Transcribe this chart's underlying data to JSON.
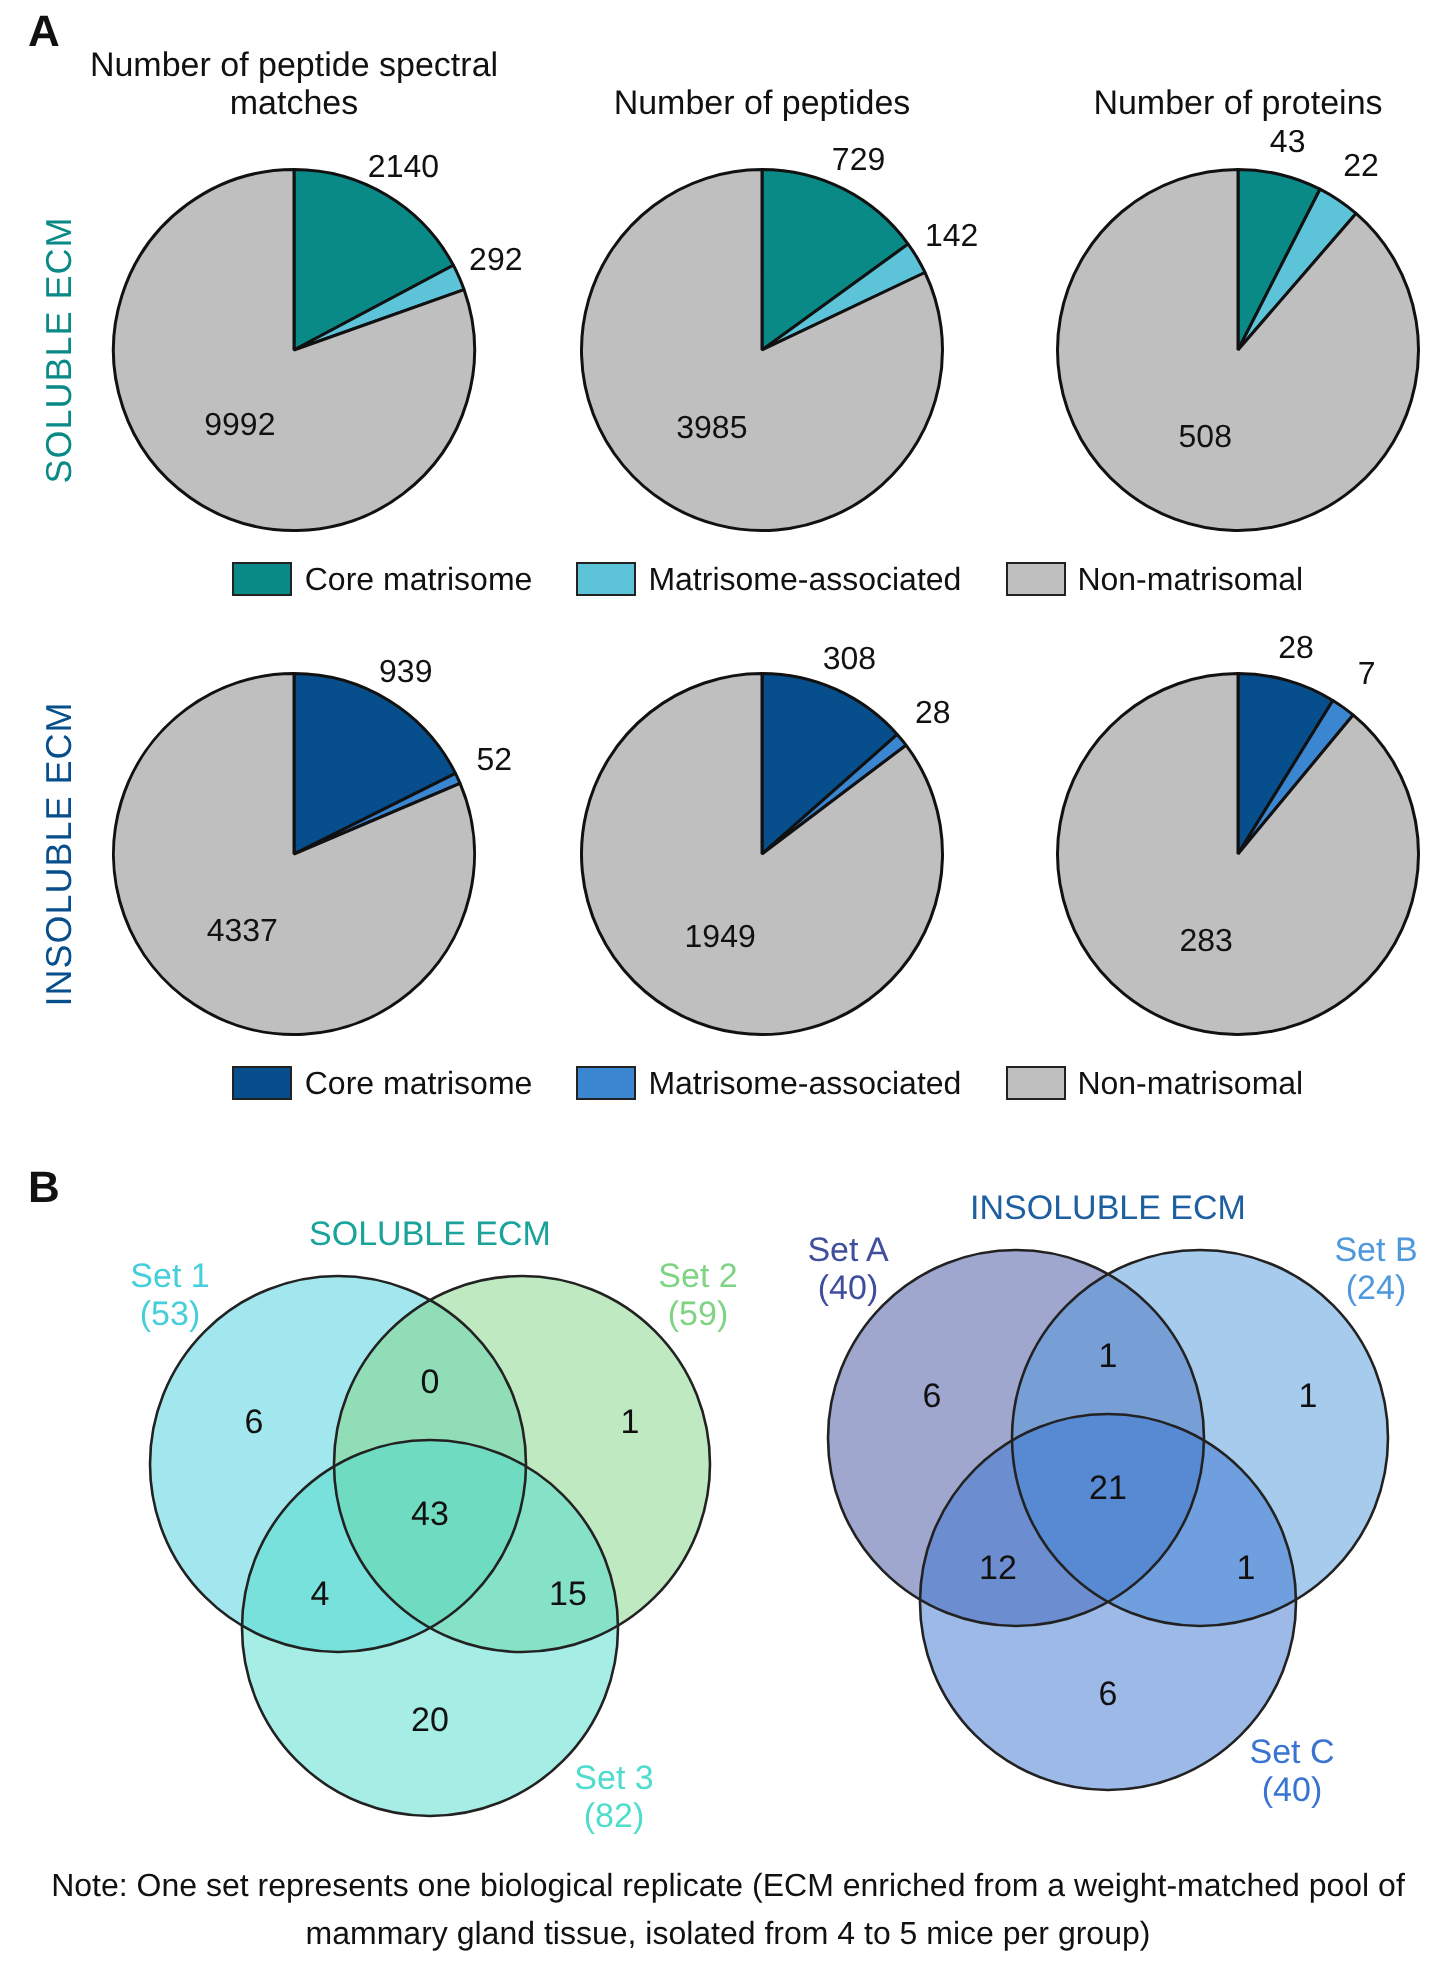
{
  "chart_data": [
    {
      "type": "pie",
      "title": "Number of peptide spectral matches",
      "ylabel": "SOLUBLE ECM",
      "annotations": [
        "A"
      ],
      "categories": [
        null,
        null,
        null
      ],
      "values": [
        2140,
        292,
        9992
      ],
      "colors": [
        "#0a8a86",
        "#5cc3d8",
        "#bfbfbf"
      ],
      "data_labels": true
    },
    {
      "type": "pie",
      "title": "Number of peptides",
      "categories": [
        "Core matrisome",
        "Matrisome-associated",
        "Non-matrisomal"
      ],
      "values": [
        729,
        142,
        3985
      ],
      "colors": [
        "#0a8a86",
        "#5cc3d8",
        "#bfbfbf"
      ],
      "data_labels": true,
      "legend": "bottom"
    },
    {
      "type": "pie",
      "title": "Number of proteins",
      "categories": [
        null,
        null,
        null
      ],
      "values": [
        43,
        22,
        508
      ],
      "colors": [
        "#0a8a86",
        "#5cc3d8",
        "#bfbfbf"
      ],
      "data_labels": true
    },
    {
      "type": "pie",
      "ylabel": "INSOLUBLE ECM",
      "categories": [
        null,
        null,
        null
      ],
      "values": [
        939,
        52,
        4337
      ],
      "colors": [
        "#074f8c",
        "#3b86d0",
        "#bfbfbf"
      ],
      "data_labels": true
    },
    {
      "type": "pie",
      "categories": [
        "Core matrisome",
        "Matrisome-associated",
        "Non-matrisomal"
      ],
      "values": [
        308,
        28,
        1949
      ],
      "colors": [
        "#074f8c",
        "#3b86d0",
        "#bfbfbf"
      ],
      "data_labels": true,
      "legend": "bottom"
    },
    {
      "type": "pie",
      "categories": [
        null,
        null,
        null
      ],
      "values": [
        28,
        7,
        283
      ],
      "colors": [
        "#074f8c",
        "#3b86d0",
        "#bfbfbf"
      ],
      "data_labels": true
    },
    {
      "type": "other",
      "title": "SOLUBLE ECM",
      "color": "#1aa39b",
      "categories": [
        "Set 1",
        "Set 2",
        "Set 3"
      ],
      "values": [
        53,
        59,
        82
      ],
      "value_labels": [
        "(53)",
        "(59)",
        "(82)"
      ],
      "colors": [
        "#45cfdb",
        "#7fd483",
        "#4edccc"
      ],
      "annotations": [
        "6",
        "0",
        "1",
        "43",
        "4",
        "15",
        "20",
        "B"
      ]
    },
    {
      "type": "other",
      "title": "INSOLUBLE ECM",
      "color": "#1d5fa0",
      "categories": [
        "Set A",
        "Set B",
        "Set C"
      ],
      "values": [
        40,
        24,
        40
      ],
      "value_labels": [
        "(40)",
        "(24)",
        "(40)"
      ],
      "colors": [
        "#3f4f9e",
        "#4f98dc",
        "#3a74d2"
      ],
      "annotations": [
        "6",
        "1",
        "1",
        "21",
        "12",
        "1",
        "6",
        "Note: One set represents one biological replicate (ECM enriched from a weight-matched pool of mammary gland tissue, isolated from 4 to 5 mice per group)"
      ]
    }
  ]
}
